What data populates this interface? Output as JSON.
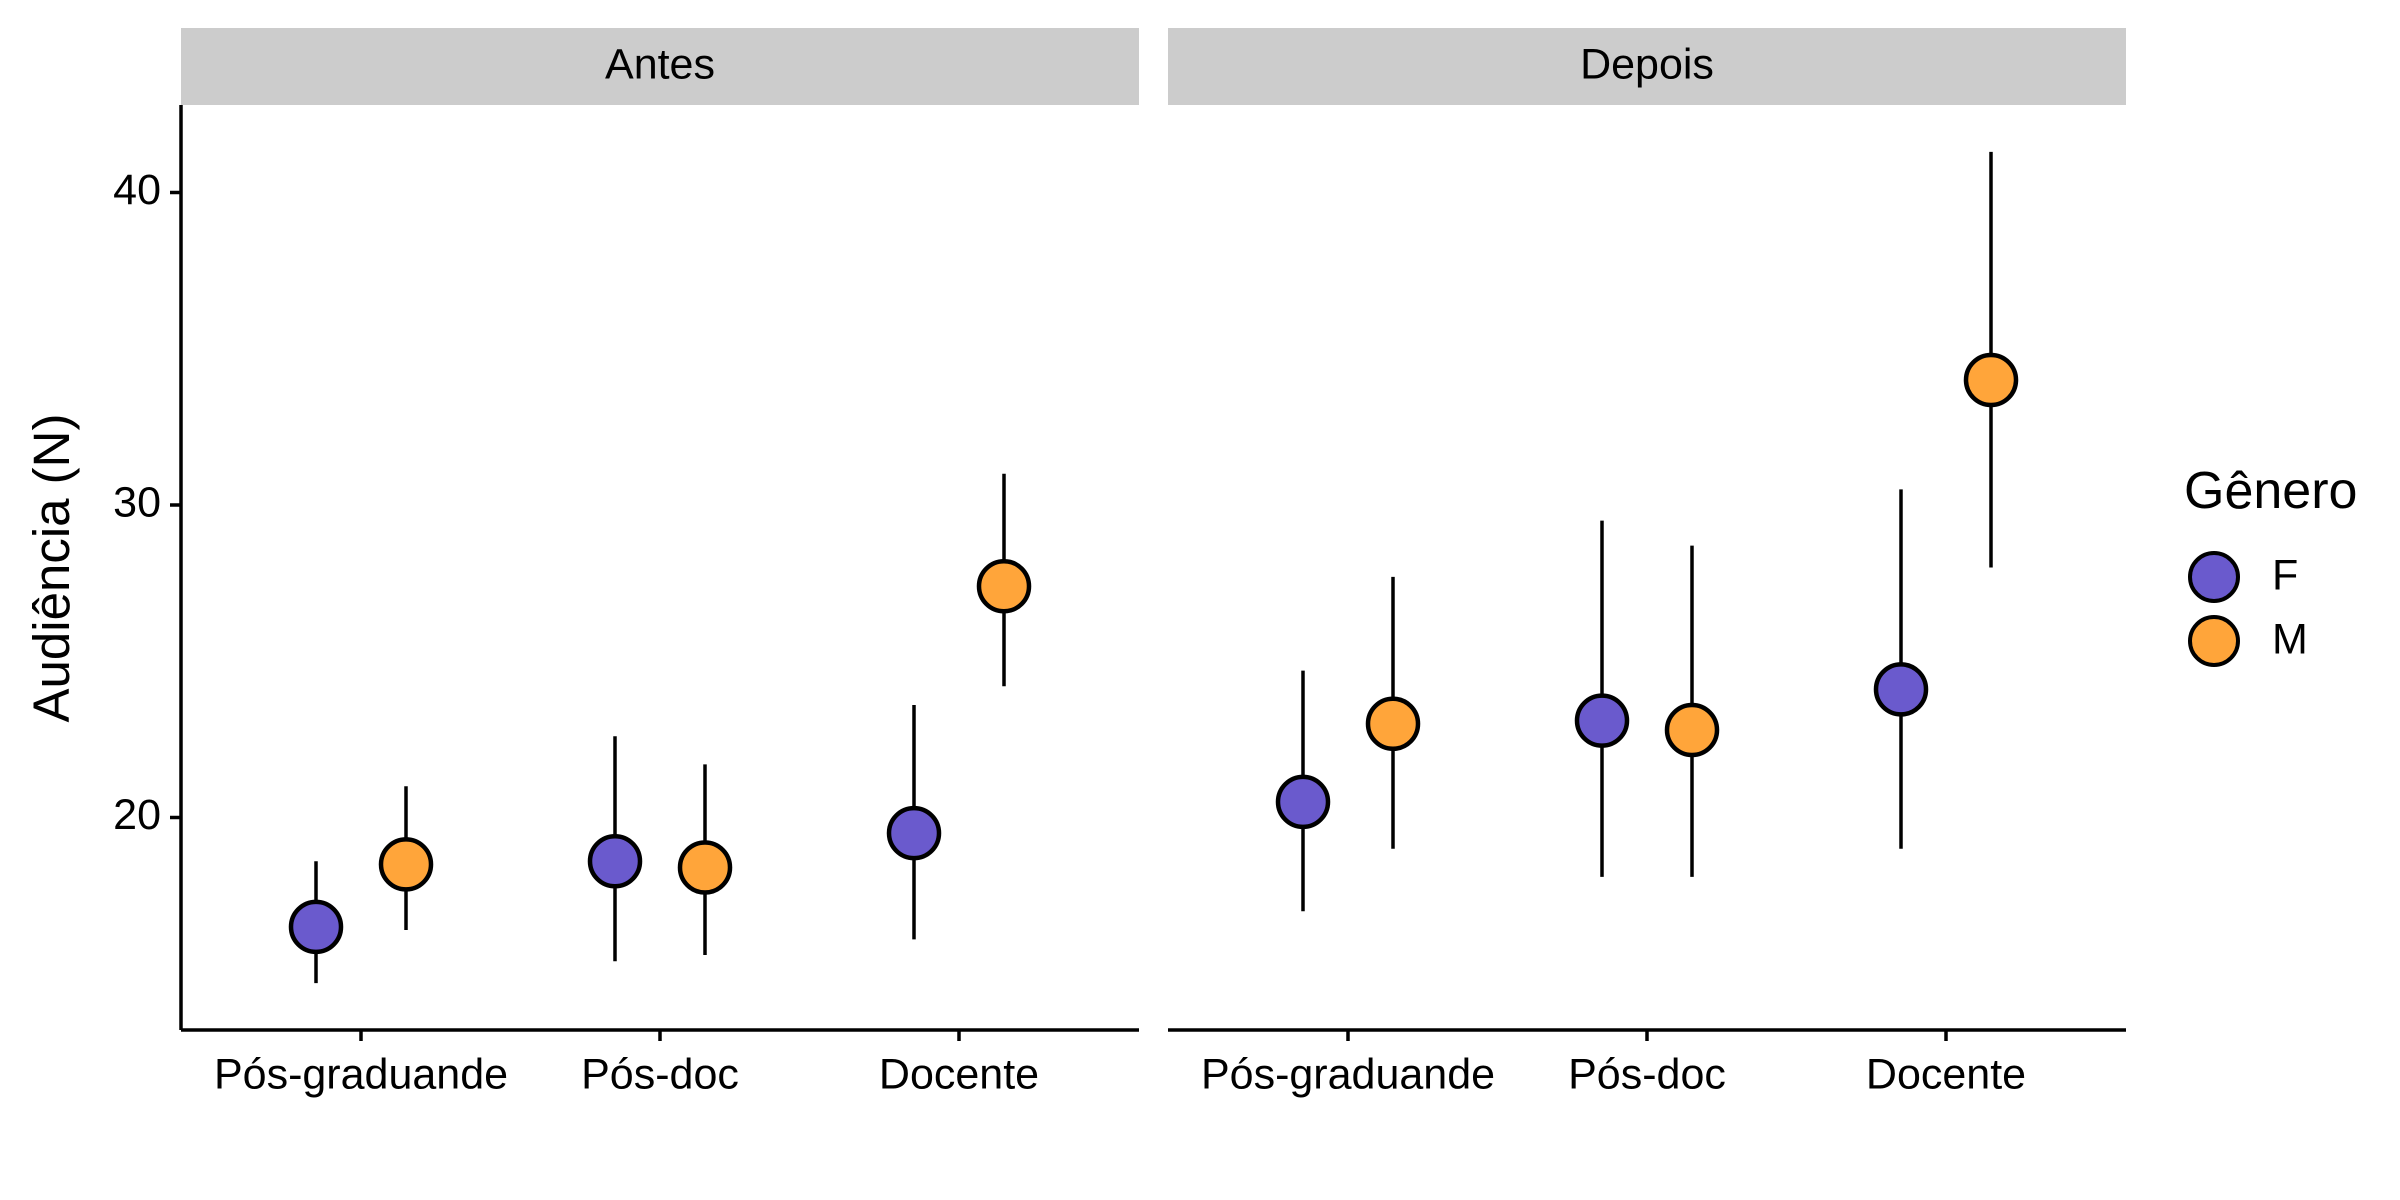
{
  "chart_data": {
    "type": "scatter",
    "subtype": "point-with-error-bars, faceted",
    "ylabel": "Audiência (N)",
    "xlabel": "",
    "categories": [
      "Pós-graduande",
      "Pós-doc",
      "Docente"
    ],
    "ylim": [
      13.2,
      42.8
    ],
    "yticks": [
      20,
      30,
      40
    ],
    "grid": false,
    "legend": {
      "title": "Gênero",
      "placement": "right",
      "entries": [
        {
          "label": "F",
          "color": "#6A5ACD"
        },
        {
          "label": "M",
          "color": "#FFA53A"
        }
      ]
    },
    "facets": [
      {
        "label": "Antes",
        "series": [
          {
            "name": "F",
            "points": [
              {
                "x": "Pós-graduande",
                "y": 16.5,
                "lower": 14.7,
                "upper": 18.6
              },
              {
                "x": "Pós-doc",
                "y": 18.6,
                "lower": 15.4,
                "upper": 22.6
              },
              {
                "x": "Docente",
                "y": 19.5,
                "lower": 16.1,
                "upper": 23.6
              }
            ]
          },
          {
            "name": "M",
            "points": [
              {
                "x": "Pós-graduande",
                "y": 18.5,
                "lower": 16.4,
                "upper": 21.0
              },
              {
                "x": "Pós-doc",
                "y": 18.4,
                "lower": 15.6,
                "upper": 21.7
              },
              {
                "x": "Docente",
                "y": 27.4,
                "lower": 24.2,
                "upper": 31.0
              }
            ]
          }
        ]
      },
      {
        "label": "Depois",
        "series": [
          {
            "name": "F",
            "points": [
              {
                "x": "Pós-graduande",
                "y": 20.5,
                "lower": 17.0,
                "upper": 24.7
              },
              {
                "x": "Pós-doc",
                "y": 23.1,
                "lower": 18.1,
                "upper": 29.5
              },
              {
                "x": "Docente",
                "y": 24.1,
                "lower": 19.0,
                "upper": 30.5
              }
            ]
          },
          {
            "name": "M",
            "points": [
              {
                "x": "Pós-graduande",
                "y": 23.0,
                "lower": 19.0,
                "upper": 27.7
              },
              {
                "x": "Pós-doc",
                "y": 22.8,
                "lower": 18.1,
                "upper": 28.7
              },
              {
                "x": "Docente",
                "y": 34.0,
                "lower": 28.0,
                "upper": 41.3
              }
            ]
          }
        ]
      }
    ]
  },
  "colors": {
    "strip_background": "#CCCCCC",
    "F": "#6A5ACD",
    "M": "#FFA53A",
    "outline": "#000000"
  }
}
